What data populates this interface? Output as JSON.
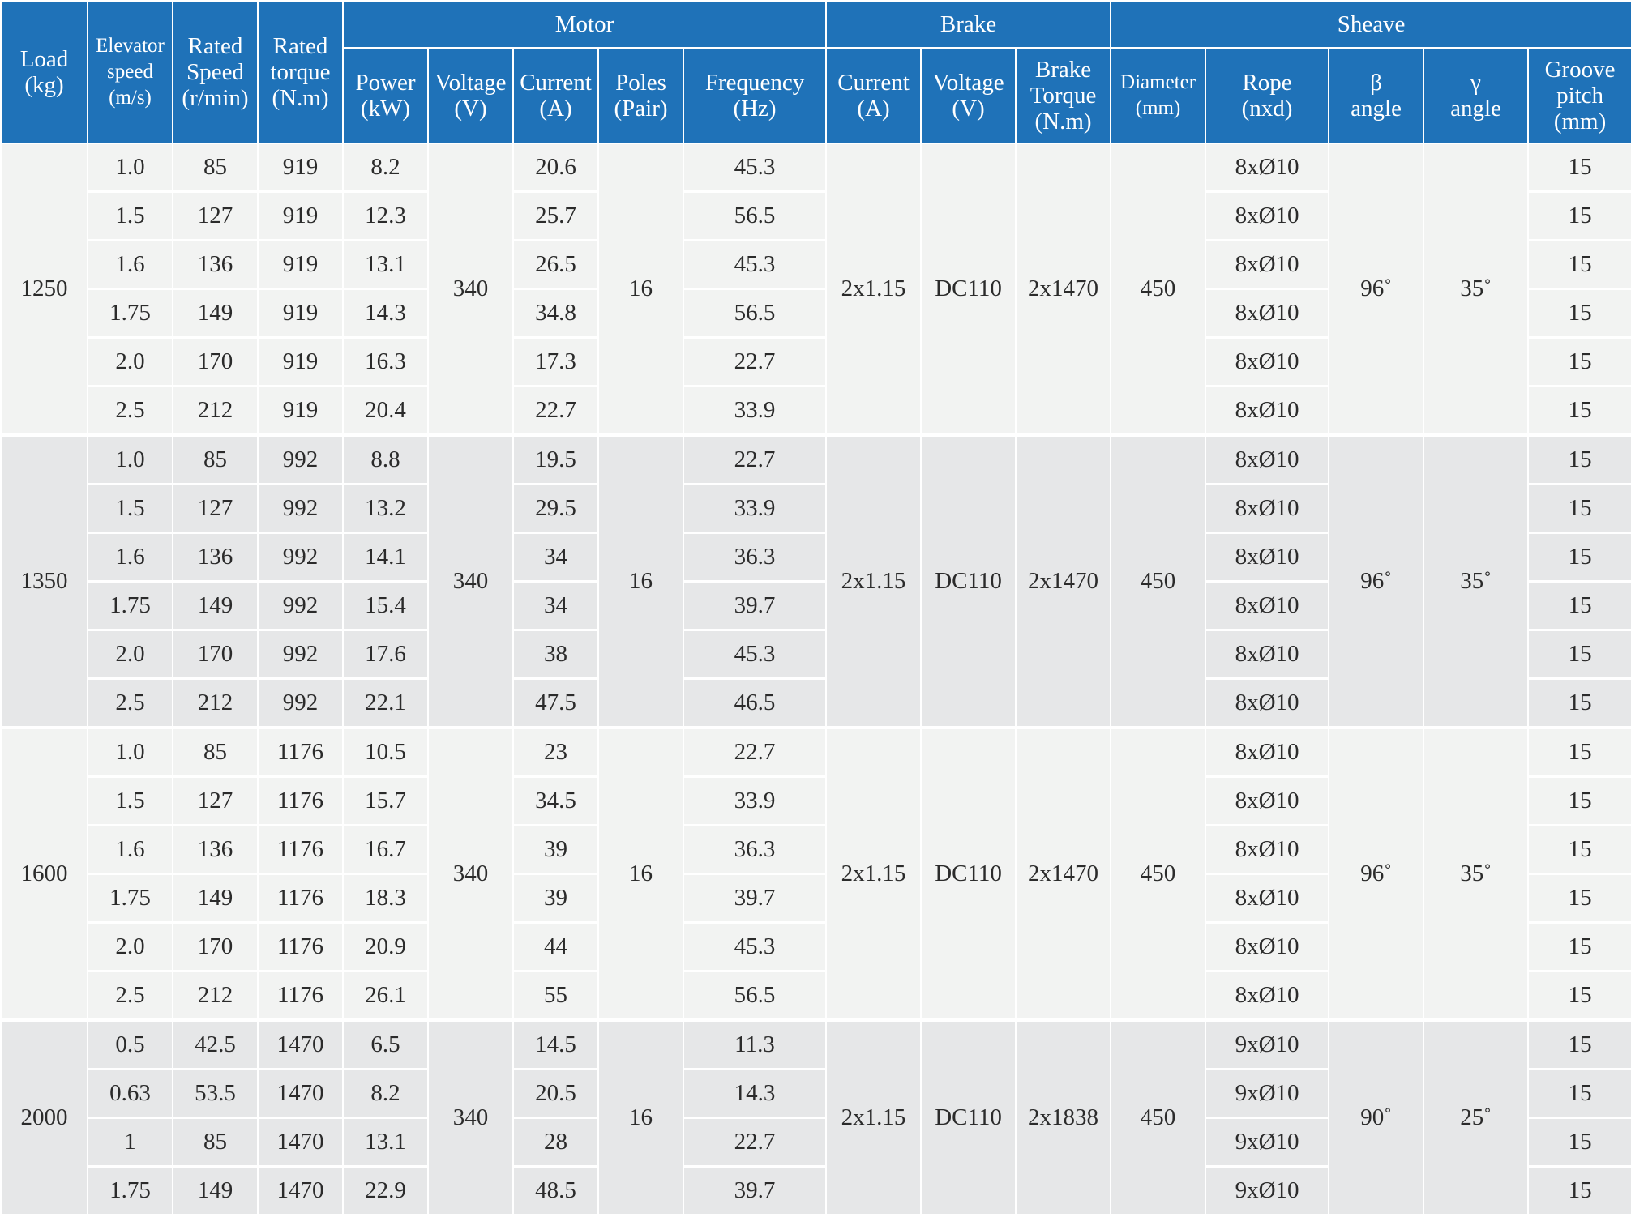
{
  "header": {
    "groups": {
      "motor": "Motor",
      "brake": "Brake",
      "sheave": "Sheave"
    },
    "columns": [
      {
        "lines": [
          "Load",
          "(kg)"
        ]
      },
      {
        "lines": [
          "Elevator",
          "speed",
          "(m/s)"
        ]
      },
      {
        "lines": [
          "Rated",
          "Speed",
          "(r/min)"
        ]
      },
      {
        "lines": [
          "Rated",
          "torque",
          "(N.m)"
        ]
      },
      {
        "lines": [
          "Power",
          "(kW)"
        ]
      },
      {
        "lines": [
          "Voltage",
          "(V)"
        ]
      },
      {
        "lines": [
          "Current",
          "(A)"
        ]
      },
      {
        "lines": [
          "Poles",
          "(Pair)"
        ]
      },
      {
        "lines": [
          "Frequency",
          "(Hz)"
        ]
      },
      {
        "lines": [
          "Current",
          "(A)"
        ]
      },
      {
        "lines": [
          "Voltage",
          "(V)"
        ]
      },
      {
        "lines": [
          "Brake",
          "Torque",
          "(N.m)"
        ]
      },
      {
        "lines": [
          "Diameter",
          "(mm)"
        ]
      },
      {
        "lines": [
          "Rope",
          "(nxd)"
        ]
      },
      {
        "lines": [
          "β",
          "angle"
        ]
      },
      {
        "lines": [
          "γ",
          "angle"
        ]
      },
      {
        "lines": [
          "Groove",
          "pitch",
          "(mm)"
        ]
      }
    ]
  },
  "groups": [
    {
      "load": "1250",
      "motor_voltage": "340",
      "poles": "16",
      "brake_current": "2x1.15",
      "brake_voltage": "DC110",
      "brake_torque": "2x1470",
      "diameter": "450",
      "beta": "96˚",
      "gamma": "35˚",
      "rows": [
        {
          "speed": "1.0",
          "rpm": "85",
          "torque": "919",
          "power": "8.2",
          "current": "20.6",
          "freq": "45.3",
          "rope": "8xØ10",
          "pitch": "15"
        },
        {
          "speed": "1.5",
          "rpm": "127",
          "torque": "919",
          "power": "12.3",
          "current": "25.7",
          "freq": "56.5",
          "rope": "8xØ10",
          "pitch": "15"
        },
        {
          "speed": "1.6",
          "rpm": "136",
          "torque": "919",
          "power": "13.1",
          "current": "26.5",
          "freq": "45.3",
          "rope": "8xØ10",
          "pitch": "15"
        },
        {
          "speed": "1.75",
          "rpm": "149",
          "torque": "919",
          "power": "14.3",
          "current": "34.8",
          "freq": "56.5",
          "rope": "8xØ10",
          "pitch": "15"
        },
        {
          "speed": "2.0",
          "rpm": "170",
          "torque": "919",
          "power": "16.3",
          "current": "17.3",
          "freq": "22.7",
          "rope": "8xØ10",
          "pitch": "15"
        },
        {
          "speed": "2.5",
          "rpm": "212",
          "torque": "919",
          "power": "20.4",
          "current": "22.7",
          "freq": "33.9",
          "rope": "8xØ10",
          "pitch": "15"
        }
      ]
    },
    {
      "load": "1350",
      "motor_voltage": "340",
      "poles": "16",
      "brake_current": "2x1.15",
      "brake_voltage": "DC110",
      "brake_torque": "2x1470",
      "diameter": "450",
      "beta": "96˚",
      "gamma": "35˚",
      "rows": [
        {
          "speed": "1.0",
          "rpm": "85",
          "torque": "992",
          "power": "8.8",
          "current": "19.5",
          "freq": "22.7",
          "rope": "8xØ10",
          "pitch": "15"
        },
        {
          "speed": "1.5",
          "rpm": "127",
          "torque": "992",
          "power": "13.2",
          "current": "29.5",
          "freq": "33.9",
          "rope": "8xØ10",
          "pitch": "15"
        },
        {
          "speed": "1.6",
          "rpm": "136",
          "torque": "992",
          "power": "14.1",
          "current": "34",
          "freq": "36.3",
          "rope": "8xØ10",
          "pitch": "15"
        },
        {
          "speed": "1.75",
          "rpm": "149",
          "torque": "992",
          "power": "15.4",
          "current": "34",
          "freq": "39.7",
          "rope": "8xØ10",
          "pitch": "15"
        },
        {
          "speed": "2.0",
          "rpm": "170",
          "torque": "992",
          "power": "17.6",
          "current": "38",
          "freq": "45.3",
          "rope": "8xØ10",
          "pitch": "15"
        },
        {
          "speed": "2.5",
          "rpm": "212",
          "torque": "992",
          "power": "22.1",
          "current": "47.5",
          "freq": "46.5",
          "rope": "8xØ10",
          "pitch": "15"
        }
      ]
    },
    {
      "load": "1600",
      "motor_voltage": "340",
      "poles": "16",
      "brake_current": "2x1.15",
      "brake_voltage": "DC110",
      "brake_torque": "2x1470",
      "diameter": "450",
      "beta": "96˚",
      "gamma": "35˚",
      "rows": [
        {
          "speed": "1.0",
          "rpm": "85",
          "torque": "1176",
          "power": "10.5",
          "current": "23",
          "freq": "22.7",
          "rope": "8xØ10",
          "pitch": "15"
        },
        {
          "speed": "1.5",
          "rpm": "127",
          "torque": "1176",
          "power": "15.7",
          "current": "34.5",
          "freq": "33.9",
          "rope": "8xØ10",
          "pitch": "15"
        },
        {
          "speed": "1.6",
          "rpm": "136",
          "torque": "1176",
          "power": "16.7",
          "current": "39",
          "freq": "36.3",
          "rope": "8xØ10",
          "pitch": "15"
        },
        {
          "speed": "1.75",
          "rpm": "149",
          "torque": "1176",
          "power": "18.3",
          "current": "39",
          "freq": "39.7",
          "rope": "8xØ10",
          "pitch": "15"
        },
        {
          "speed": "2.0",
          "rpm": "170",
          "torque": "1176",
          "power": "20.9",
          "current": "44",
          "freq": "45.3",
          "rope": "8xØ10",
          "pitch": "15"
        },
        {
          "speed": "2.5",
          "rpm": "212",
          "torque": "1176",
          "power": "26.1",
          "current": "55",
          "freq": "56.5",
          "rope": "8xØ10",
          "pitch": "15"
        }
      ]
    },
    {
      "load": "2000",
      "motor_voltage": "340",
      "poles": "16",
      "brake_current": "2x1.15",
      "brake_voltage": "DC110",
      "brake_torque": "2x1838",
      "diameter": "450",
      "beta": "90˚",
      "gamma": "25˚",
      "rows": [
        {
          "speed": "0.5",
          "rpm": "42.5",
          "torque": "1470",
          "power": "6.5",
          "current": "14.5",
          "freq": "11.3",
          "rope": "9xØ10",
          "pitch": "15"
        },
        {
          "speed": "0.63",
          "rpm": "53.5",
          "torque": "1470",
          "power": "8.2",
          "current": "20.5",
          "freq": "14.3",
          "rope": "9xØ10",
          "pitch": "15"
        },
        {
          "speed": "1",
          "rpm": "85",
          "torque": "1470",
          "power": "13.1",
          "current": "28",
          "freq": "22.7",
          "rope": "9xØ10",
          "pitch": "15"
        },
        {
          "speed": "1.75",
          "rpm": "149",
          "torque": "1470",
          "power": "22.9",
          "current": "48.5",
          "freq": "39.7",
          "rope": "9xØ10",
          "pitch": "15"
        }
      ]
    }
  ]
}
